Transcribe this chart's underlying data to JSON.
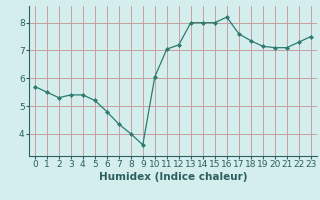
{
  "x": [
    0,
    1,
    2,
    3,
    4,
    5,
    6,
    7,
    8,
    9,
    10,
    11,
    12,
    13,
    14,
    15,
    16,
    17,
    18,
    19,
    20,
    21,
    22,
    23
  ],
  "y": [
    5.7,
    5.5,
    5.3,
    5.4,
    5.4,
    5.2,
    4.8,
    4.35,
    4.0,
    3.6,
    6.05,
    7.05,
    7.2,
    8.0,
    8.0,
    8.0,
    8.2,
    7.6,
    7.35,
    7.15,
    7.1,
    7.1,
    7.3,
    7.5
  ],
  "line_color": "#2d7a6e",
  "marker": "D",
  "marker_size": 2,
  "bg_color": "#d4eeee",
  "grid_color": "#c8a0a0",
  "xlabel": "Humidex (Indice chaleur)",
  "xlim": [
    -0.5,
    23.5
  ],
  "ylim": [
    3.2,
    8.6
  ],
  "yticks": [
    4,
    5,
    6,
    7,
    8
  ],
  "xticks": [
    0,
    1,
    2,
    3,
    4,
    5,
    6,
    7,
    8,
    9,
    10,
    11,
    12,
    13,
    14,
    15,
    16,
    17,
    18,
    19,
    20,
    21,
    22,
    23
  ],
  "font_color": "#2d5f5f",
  "tick_fontsize": 6.5,
  "xlabel_fontsize": 7.5
}
